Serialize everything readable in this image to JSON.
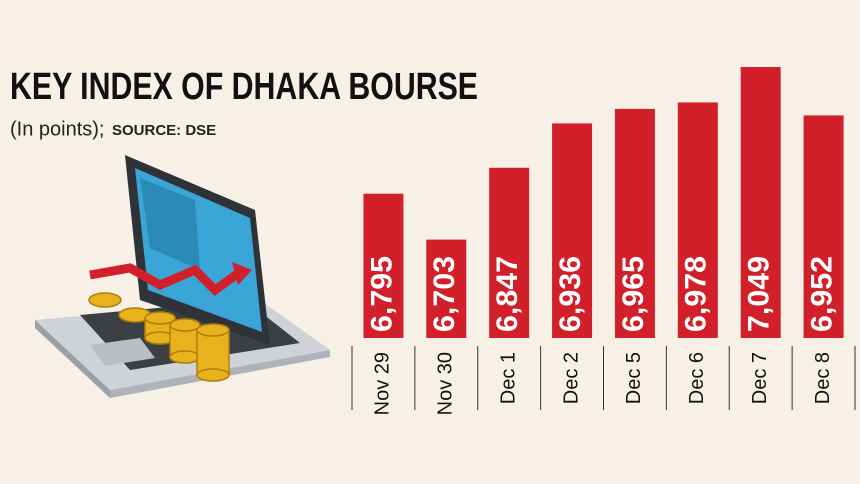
{
  "chart_data": {
    "type": "bar",
    "title": "KEY INDEX OF DHAKA BOURSE",
    "subtitle": "(In points);",
    "source": "SOURCE: DSE",
    "categories": [
      "Nov 29",
      "Nov 30",
      "Dec 1",
      "Dec 2",
      "Dec 5",
      "Dec 6",
      "Dec 7",
      "Dec 8"
    ],
    "values": [
      6795,
      6703,
      6847,
      6936,
      6965,
      6978,
      7049,
      6952
    ],
    "value_labels": [
      "6,795",
      "6,703",
      "6,847",
      "6,936",
      "6,965",
      "6,978",
      "7,049",
      "6,952"
    ],
    "color": "#d1202a"
  }
}
